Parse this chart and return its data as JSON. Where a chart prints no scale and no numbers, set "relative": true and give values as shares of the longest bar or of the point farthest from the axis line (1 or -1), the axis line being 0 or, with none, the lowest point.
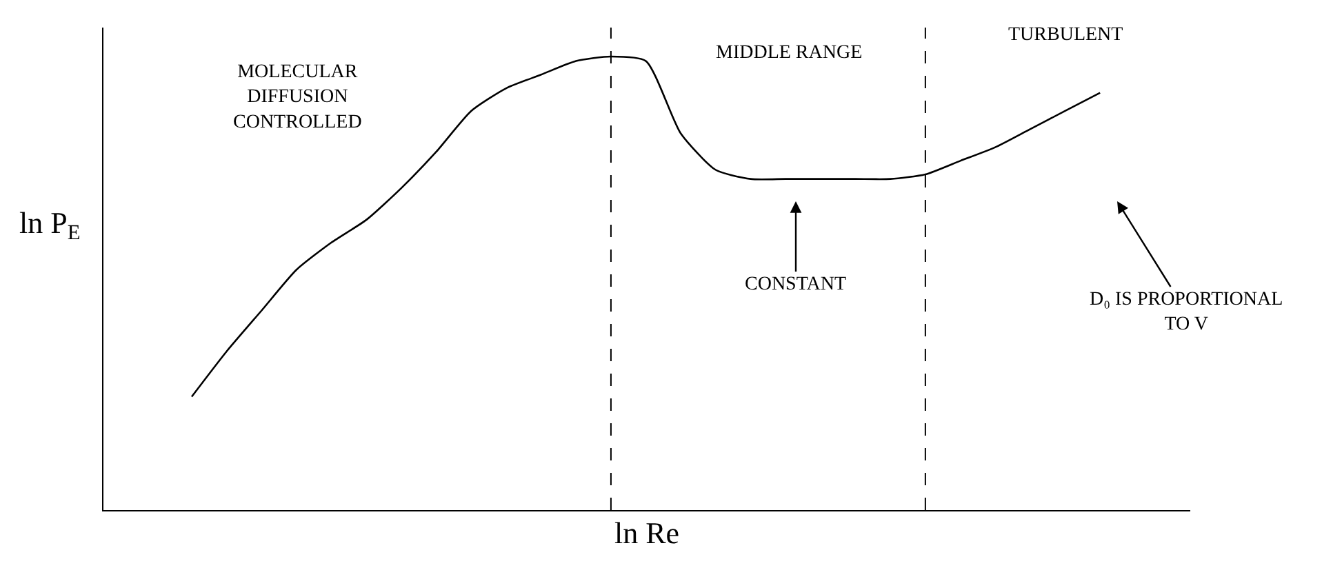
{
  "chart_data": {
    "type": "line",
    "relative": true,
    "xlabel": "ln Re",
    "ylabel": "ln P$_{E}$",
    "categories": [
      null,
      null,
      null,
      null,
      null,
      null,
      null,
      null,
      null,
      null,
      null,
      null,
      null,
      null,
      null,
      null,
      null,
      null,
      null,
      null,
      null,
      null,
      null,
      null,
      null,
      null,
      null
    ],
    "series": [
      {
        "color": "#000000",
        "values": [
          0.25,
          0.35,
          0.44,
          0.53,
          0.59,
          0.64,
          0.71,
          0.79,
          0.88,
          0.93,
          0.96,
          0.99,
          1.0,
          0.99,
          0.83,
          0.75,
          0.73,
          0.73,
          0.73,
          0.73,
          0.73,
          0.74,
          0.77,
          0.8,
          0.84,
          0.88,
          0.92
        ]
      }
    ],
    "annotations": [
      "MOLECULAR\nDIFFUSION\nCONTROLLED",
      "MIDDLE RANGE",
      "TURBULENT",
      "CONSTANT",
      "D₀ IS PROPORTIONAL\nTO V"
    ],
    "marker": "none",
    "line_style": "solid"
  }
}
